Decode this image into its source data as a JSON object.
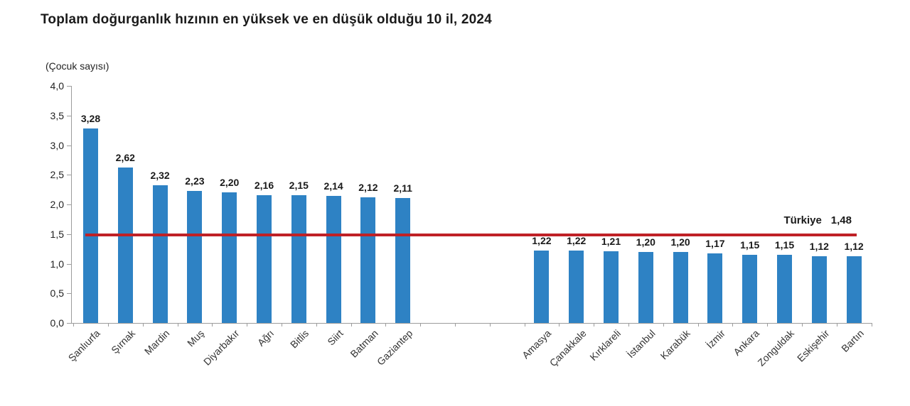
{
  "title": "Toplam doğurganlık hızının en yüksek ve en düşük olduğu 10 il, 2024",
  "chart_data": {
    "type": "bar",
    "title": "Toplam doğurganlık hızının en yüksek ve en düşük olduğu 10 il, 2024",
    "unit_label": "(Çocuk sayısı)",
    "xlabel": "",
    "ylabel": "(Çocuk sayısı)",
    "ylim": [
      0,
      4
    ],
    "ytick_step": 0.5,
    "ytick_labels": [
      "0,0",
      "0,5",
      "1,0",
      "1,5",
      "2,0",
      "2,5",
      "3,0",
      "3,5",
      "4,0"
    ],
    "bar_color": "#2e82c4",
    "axis_color": "#9c9c9c",
    "grid": false,
    "legend": "none",
    "groups": [
      {
        "name": "en-yuksek-10-il",
        "categories": [
          "Şanlıurfa",
          "Şırnak",
          "Mardin",
          "Muş",
          "Diyarbakır",
          "Ağrı",
          "Bitlis",
          "Siirt",
          "Batman",
          "Gaziantep"
        ],
        "values": [
          3.28,
          2.62,
          2.32,
          2.23,
          2.2,
          2.16,
          2.15,
          2.14,
          2.12,
          2.11
        ],
        "value_labels": [
          "3,28",
          "2,62",
          "2,32",
          "2,23",
          "2,20",
          "2,16",
          "2,15",
          "2,14",
          "2,12",
          "2,11"
        ]
      },
      {
        "name": "en-dusuk-10-il",
        "categories": [
          "Amasya",
          "Çanakkale",
          "Kırklareli",
          "İstanbul",
          "Karabük",
          "İzmir",
          "Ankara",
          "Zonguldak",
          "Eskişehir",
          "Bartın"
        ],
        "values": [
          1.22,
          1.22,
          1.21,
          1.2,
          1.2,
          1.17,
          1.15,
          1.15,
          1.12,
          1.12
        ],
        "value_labels": [
          "1,22",
          "1,22",
          "1,21",
          "1,20",
          "1,20",
          "1,17",
          "1,15",
          "1,15",
          "1,12",
          "1,12"
        ]
      }
    ],
    "reference_line": {
      "label": "Türkiye",
      "value": 1.48,
      "value_label": "1,48",
      "color": "#bf2126"
    }
  }
}
